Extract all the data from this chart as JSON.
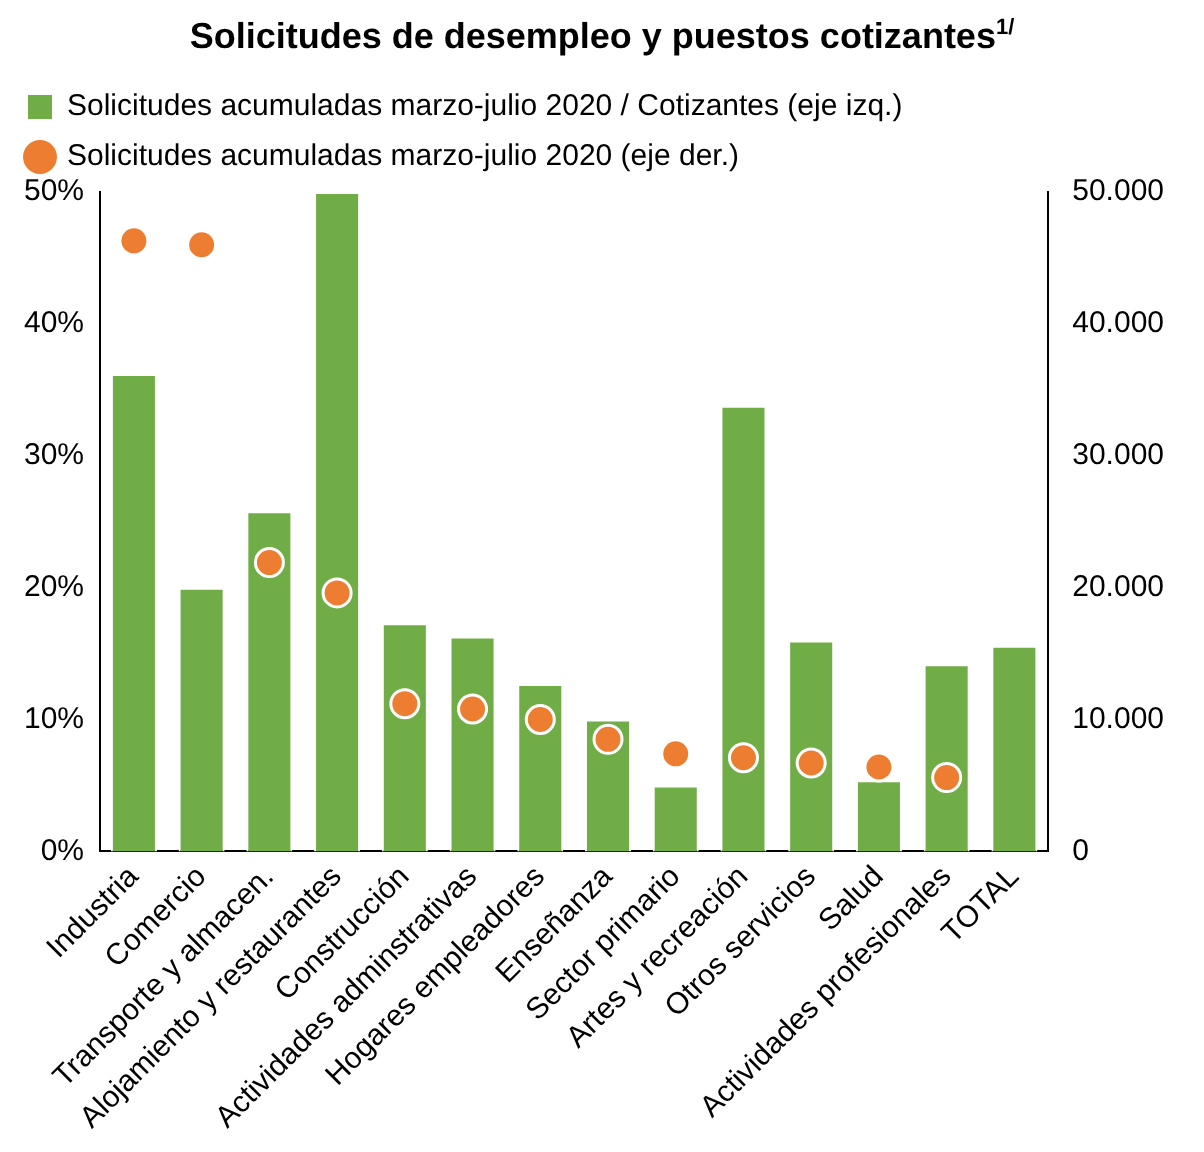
{
  "chart_data": {
    "type": "bar",
    "title": "Solicitudes de desempleo y puestos cotizantes$^{1/}$",
    "categories": [
      "Industria",
      "Comercio",
      "Transporte y almacen.",
      "Alojamiento y restaurantes",
      "Construcción",
      "Actividades adminstrativas",
      "Hogares empleadores",
      "Enseñanza",
      "Sector primario",
      "Artes y recreación",
      "Otros servicios",
      "Salud",
      "Actividades profesionales",
      "TOTAL"
    ],
    "series": [
      {
        "name": "Solicitudes acumuladas marzo-julio 2020 / Cotizantes (eje izq.)",
        "color": "#70ad47",
        "values": [
          36.2,
          20.0,
          25.8,
          50,
          17.3,
          16.3,
          12.7,
          10.0,
          5.0,
          33.8,
          16.0,
          5.4,
          14.2,
          15.6
        ]
      },
      {
        "type": "scatter",
        "axis": "y2",
        "name": "Solicitudes acumuladas marzo-julio 2020 (eje der.)",
        "color": "#ed7d31",
        "values": [
          46300,
          46000,
          21900,
          19600,
          11200,
          10800,
          10000,
          8500,
          7400,
          7100,
          6700,
          6400,
          5600,
          null
        ]
      }
    ],
    "ylim": [
      0,
      50
    ],
    "yticks": [
      {
        "value": 0,
        "label": "0%"
      },
      {
        "value": 10,
        "label": "10%"
      },
      {
        "value": 20,
        "label": "20%"
      },
      {
        "value": 30,
        "label": "30%"
      },
      {
        "value": 40,
        "label": "40%"
      },
      {
        "value": 50,
        "label": "50%"
      }
    ],
    "y2lim": [
      0,
      50000
    ],
    "y2ticks": [
      0,
      {
        "value": 10000,
        "label": "10.000"
      },
      {
        "value": 20000,
        "label": "20.000"
      },
      {
        "value": 30000,
        "label": "30.000"
      },
      {
        "value": 40000,
        "label": "40.000"
      },
      {
        "value": 50000,
        "label": "50.000"
      }
    ],
    "marker": "circle",
    "grid": false,
    "legend": "top left"
  }
}
